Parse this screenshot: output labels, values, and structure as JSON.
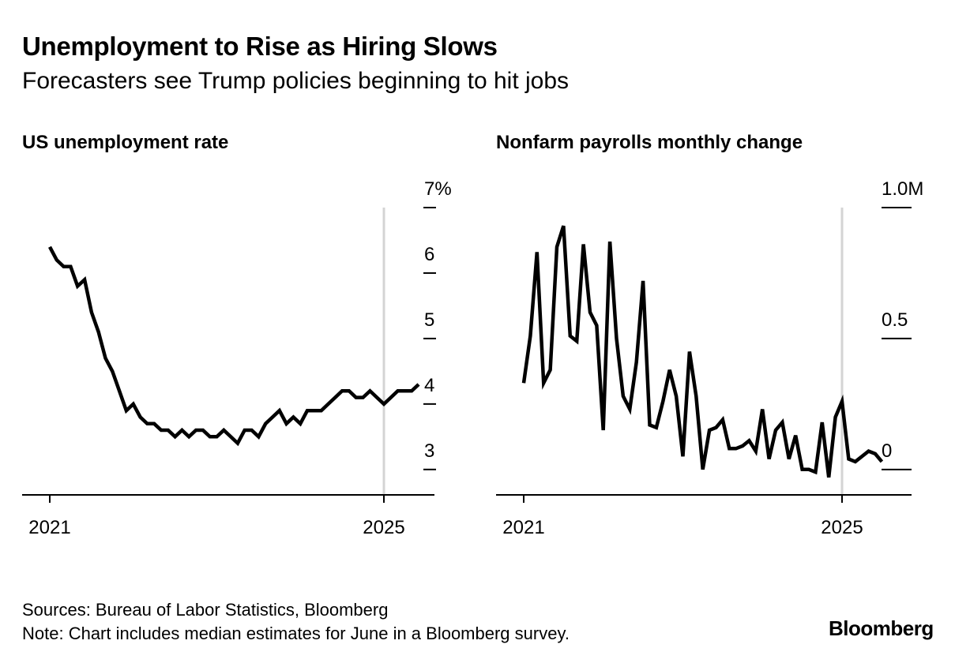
{
  "title": "Unemployment to Rise as Hiring Slows",
  "subtitle": "Forecasters see Trump policies beginning to hit jobs",
  "chart_data": [
    {
      "type": "line",
      "title": "US unemployment rate",
      "x_ticks": [
        "2021",
        "2025"
      ],
      "x_domain": [
        2021.0,
        2025.42
      ],
      "y_ticks": [
        "7%",
        "6",
        "5",
        "4",
        "3"
      ],
      "y_tick_values": [
        7,
        6,
        5,
        4,
        3
      ],
      "ylim": [
        2.6,
        7
      ],
      "y_axis_position": "right",
      "series": [
        {
          "name": "US unemployment rate",
          "start": 2021.0,
          "step": 0.08333,
          "values": [
            6.4,
            6.2,
            6.1,
            6.1,
            5.8,
            5.9,
            5.4,
            5.1,
            4.7,
            4.5,
            4.2,
            3.9,
            4.0,
            3.8,
            3.7,
            3.7,
            3.6,
            3.6,
            3.5,
            3.6,
            3.5,
            3.6,
            3.6,
            3.5,
            3.5,
            3.6,
            3.5,
            3.4,
            3.6,
            3.6,
            3.5,
            3.7,
            3.8,
            3.9,
            3.7,
            3.8,
            3.7,
            3.9,
            3.9,
            3.9,
            4.0,
            4.1,
            4.2,
            4.2,
            4.1,
            4.1,
            4.2,
            4.1,
            4.0,
            4.1,
            4.2,
            4.2,
            4.2,
            4.3
          ]
        }
      ],
      "reference_line_x": 2025.0
    },
    {
      "type": "line",
      "title": "Nonfarm payrolls monthly change",
      "x_ticks": [
        "2021",
        "2025"
      ],
      "x_domain": [
        2021.0,
        2025.42
      ],
      "y_ticks": [
        "1.0M",
        "0.5",
        "0"
      ],
      "y_tick_values": [
        1.0,
        0.5,
        0
      ],
      "ylim": [
        -0.1,
        1.0
      ],
      "y_axis_position": "right",
      "series": [
        {
          "name": "Nonfarm payrolls monthly change",
          "start": 2021.0,
          "step": 0.08333,
          "values": [
            0.33,
            0.51,
            0.83,
            0.33,
            0.38,
            0.85,
            0.93,
            0.51,
            0.49,
            0.86,
            0.6,
            0.55,
            0.15,
            0.87,
            0.5,
            0.28,
            0.23,
            0.41,
            0.72,
            0.17,
            0.16,
            0.26,
            0.38,
            0.28,
            0.05,
            0.45,
            0.28,
            0.0,
            0.15,
            0.16,
            0.19,
            0.08,
            0.08,
            0.09,
            0.11,
            0.07,
            0.23,
            0.04,
            0.15,
            0.18,
            0.04,
            0.13,
            0.0,
            0.0,
            -0.01,
            0.18,
            -0.03,
            0.2,
            0.26,
            0.04,
            0.03,
            0.05,
            0.07,
            0.06,
            0.03
          ]
        }
      ],
      "reference_line_x": 2025.0
    }
  ],
  "footer": {
    "sources": "Sources: Bureau of Labor Statistics, Bloomberg",
    "note": "Note: Chart includes median estimates for June in a Bloomberg survey."
  },
  "brand": "Bloomberg",
  "colors": {
    "line": "#000000",
    "axis": "#000000",
    "reference": "#d4d4d4"
  }
}
